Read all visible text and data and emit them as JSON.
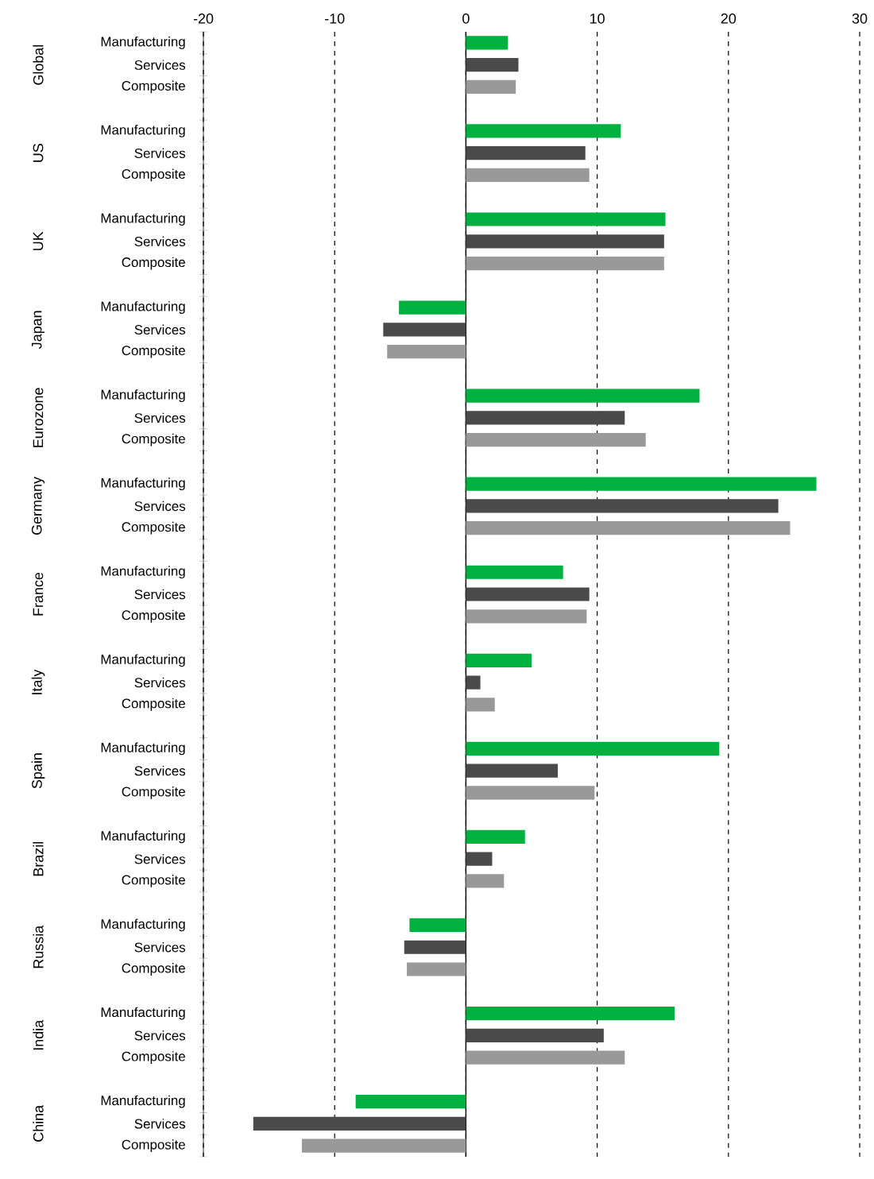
{
  "chart_data": {
    "type": "bar",
    "orientation": "horizontal",
    "categories": [
      "Manufacturing",
      "Services",
      "Composite",
      null,
      "Manufacturing",
      "Services",
      "Composite",
      null,
      "Manufacturing",
      "Services",
      "Composite",
      null,
      "Manufacturing",
      "Services",
      "Composite",
      null,
      "Manufacturing",
      "Services",
      "Composite",
      null,
      "Manufacturing",
      "Services",
      "Composite",
      null,
      "Manufacturing",
      "Services",
      "Composite",
      null,
      "Manufacturing",
      "Services",
      "Composite",
      null,
      "Manufacturing",
      "Services",
      "Composite",
      null,
      "Manufacturing",
      "Services",
      "Composite",
      null,
      "Manufacturing",
      "Services",
      "Composite",
      null,
      "Manufacturing",
      "Services",
      "Composite",
      null,
      "Manufacturing",
      "Services",
      "Composite"
    ],
    "values": [
      3.2,
      4.0,
      3.8,
      null,
      11.8,
      9.1,
      9.4,
      null,
      15.2,
      15.1,
      15.1,
      null,
      -5.1,
      -6.3,
      -6.0,
      null,
      17.8,
      12.1,
      13.7,
      null,
      26.7,
      23.8,
      24.7,
      null,
      7.4,
      9.4,
      9.2,
      null,
      5.0,
      1.1,
      2.2,
      null,
      19.3,
      7.0,
      9.8,
      null,
      4.5,
      2.0,
      2.9,
      null,
      -4.3,
      -4.7,
      -4.5,
      null,
      15.9,
      10.5,
      12.1,
      null,
      -8.4,
      -16.2,
      -12.5
    ],
    "colors": [
      "#00b140",
      "#4a4a4a",
      "#999999",
      null,
      "#00b140",
      "#4a4a4a",
      "#999999",
      null,
      "#00b140",
      "#4a4a4a",
      "#999999",
      null,
      "#00b140",
      "#4a4a4a",
      "#999999",
      null,
      "#00b140",
      "#4a4a4a",
      "#999999",
      null,
      "#00b140",
      "#4a4a4a",
      "#999999",
      null,
      "#00b140",
      "#4a4a4a",
      "#999999",
      null,
      "#00b140",
      "#4a4a4a",
      "#999999",
      null,
      "#00b140",
      "#4a4a4a",
      "#999999",
      null,
      "#00b140",
      "#4a4a4a",
      "#999999",
      null,
      "#00b140",
      "#4a4a4a",
      "#999999",
      null,
      "#00b140",
      "#4a4a4a",
      "#999999",
      null,
      "#00b140",
      "#4a4a4a",
      "#999999"
    ],
    "annotations": [
      "Global",
      "US",
      "UK",
      "Japan",
      "Eurozone",
      "Germany",
      "France",
      "Italy",
      "Spain",
      "Brazil",
      "Russia",
      "India",
      "China"
    ],
    "xlim": [
      -20,
      30
    ],
    "xticks": [
      -20,
      -10,
      0,
      10,
      20,
      30
    ],
    "grid": "x"
  }
}
